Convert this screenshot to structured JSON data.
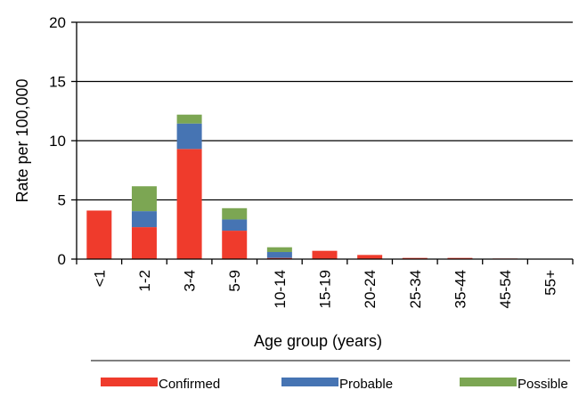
{
  "chart_data": {
    "type": "bar",
    "stacked": true,
    "xlabel": "Age group (years)",
    "ylabel": "Rate per 100,000",
    "ylim": [
      0,
      20
    ],
    "yticks": [
      0,
      5,
      10,
      15,
      20
    ],
    "grid": "horizontal",
    "legend_position": "bottom",
    "categories": [
      "<1",
      "1-2",
      "3-4",
      "5-9",
      "10-14",
      "15-19",
      "20-24",
      "25-34",
      "35-44",
      "45-54",
      "55+"
    ],
    "series": [
      {
        "name": "Confirmed",
        "color": "#ef3b2c",
        "values": [
          4.1,
          2.7,
          9.3,
          2.4,
          0.1,
          0.7,
          0.35,
          0.1,
          0.1,
          0.05,
          0.0
        ]
      },
      {
        "name": "Probable",
        "color": "#4674b3",
        "values": [
          0.0,
          1.35,
          2.15,
          0.95,
          0.5,
          0.0,
          0.0,
          0.0,
          0.0,
          0.0,
          0.0
        ]
      },
      {
        "name": "Possible",
        "color": "#7ca653",
        "values": [
          0.0,
          2.1,
          0.75,
          0.95,
          0.4,
          0.0,
          0.0,
          0.0,
          0.0,
          0.0,
          0.0
        ]
      }
    ]
  }
}
